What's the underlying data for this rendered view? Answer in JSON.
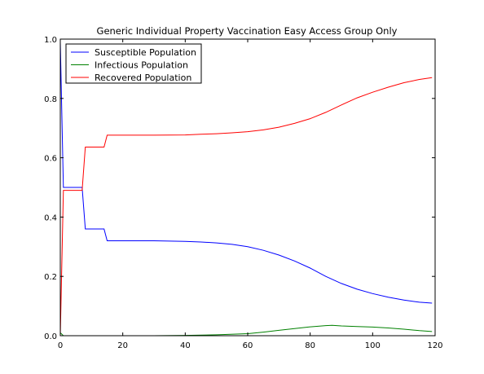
{
  "chart_data": {
    "type": "line",
    "title": "Generic Individual Property Vaccination Easy Access Group Only",
    "xlabel": "",
    "ylabel": "",
    "xlim": [
      0,
      120
    ],
    "ylim": [
      0.0,
      1.0
    ],
    "xticks": [
      0,
      20,
      40,
      60,
      80,
      100,
      120
    ],
    "yticks": [
      0.0,
      0.2,
      0.4,
      0.6,
      0.8,
      1.0
    ],
    "xtick_labels": [
      "0",
      "20",
      "40",
      "60",
      "80",
      "100",
      "120"
    ],
    "ytick_labels": [
      "0.0",
      "0.2",
      "0.4",
      "0.6",
      "0.8",
      "1.0"
    ],
    "grid": false,
    "legend_position": "top-left",
    "series": [
      {
        "name": "Susceptible Population",
        "color": "#0000ff",
        "x": [
          0,
          1,
          2,
          7,
          8,
          14,
          15,
          20,
          30,
          40,
          45,
          50,
          55,
          60,
          65,
          70,
          75,
          80,
          85,
          90,
          95,
          100,
          105,
          110,
          115,
          119
        ],
        "y": [
          0.99,
          0.5,
          0.5,
          0.5,
          0.36,
          0.36,
          0.32,
          0.32,
          0.32,
          0.318,
          0.316,
          0.313,
          0.308,
          0.3,
          0.288,
          0.272,
          0.252,
          0.228,
          0.2,
          0.176,
          0.157,
          0.142,
          0.13,
          0.12,
          0.113,
          0.11
        ]
      },
      {
        "name": "Infectious Population",
        "color": "#008000",
        "x": [
          0,
          1,
          10,
          20,
          30,
          40,
          50,
          60,
          65,
          70,
          75,
          80,
          85,
          87,
          90,
          95,
          100,
          105,
          110,
          115,
          119
        ],
        "y": [
          0.01,
          0.0,
          0.0,
          0.0,
          0.0,
          0.001,
          0.003,
          0.007,
          0.012,
          0.018,
          0.024,
          0.03,
          0.034,
          0.035,
          0.033,
          0.031,
          0.029,
          0.026,
          0.022,
          0.017,
          0.014
        ]
      },
      {
        "name": "Recovered Population",
        "color": "#ff0000",
        "x": [
          0,
          1,
          2,
          7,
          8,
          14,
          15,
          20,
          30,
          40,
          45,
          50,
          55,
          60,
          65,
          70,
          75,
          80,
          85,
          90,
          95,
          100,
          105,
          110,
          115,
          119
        ],
        "y": [
          0.0,
          0.49,
          0.49,
          0.49,
          0.636,
          0.636,
          0.676,
          0.676,
          0.676,
          0.677,
          0.679,
          0.681,
          0.684,
          0.688,
          0.694,
          0.703,
          0.716,
          0.732,
          0.753,
          0.778,
          0.802,
          0.821,
          0.838,
          0.853,
          0.864,
          0.87
        ]
      }
    ]
  }
}
